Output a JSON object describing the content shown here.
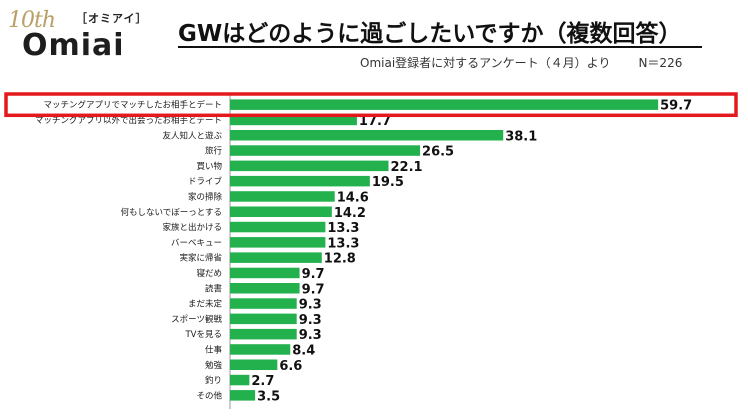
{
  "logo": {
    "anniversary": "10th",
    "tag": "［オミアイ］",
    "brand": "Omiai"
  },
  "title": "GWはどのように過ごしたいですか（複数回答）",
  "subtitle": "Omiai登録者に対するアンケート（４月）より",
  "sample_size": "N＝226",
  "colors": {
    "bar": "#22b14c",
    "highlight": "#e3191e"
  },
  "chart_data": {
    "type": "bar",
    "orientation": "horizontal",
    "categories": [
      "マッチングアプリでマッチしたお相手とデート",
      "マッチングアプリ以外で出会ったお相手とデート",
      "友人知人と遊ぶ",
      "旅行",
      "買い物",
      "ドライブ",
      "家の掃除",
      "何もしないでぼーっとする",
      "家族と出かける",
      "バーベキュー",
      "実家に帰省",
      "寝だめ",
      "読書",
      "まだ未定",
      "スポーツ観戦",
      "TVを見る",
      "仕事",
      "勉強",
      "釣り",
      "その他"
    ],
    "values": [
      59.7,
      17.7,
      38.1,
      26.5,
      22.1,
      19.5,
      14.6,
      14.2,
      13.3,
      13.3,
      12.8,
      9.7,
      9.7,
      9.3,
      9.3,
      9.3,
      8.4,
      6.6,
      2.7,
      3.5
    ],
    "xlim": [
      0,
      70
    ],
    "xticks": [
      "0",
      "10",
      "20",
      "30",
      "40",
      "50",
      "60",
      "70"
    ],
    "highlight_index": 0
  }
}
